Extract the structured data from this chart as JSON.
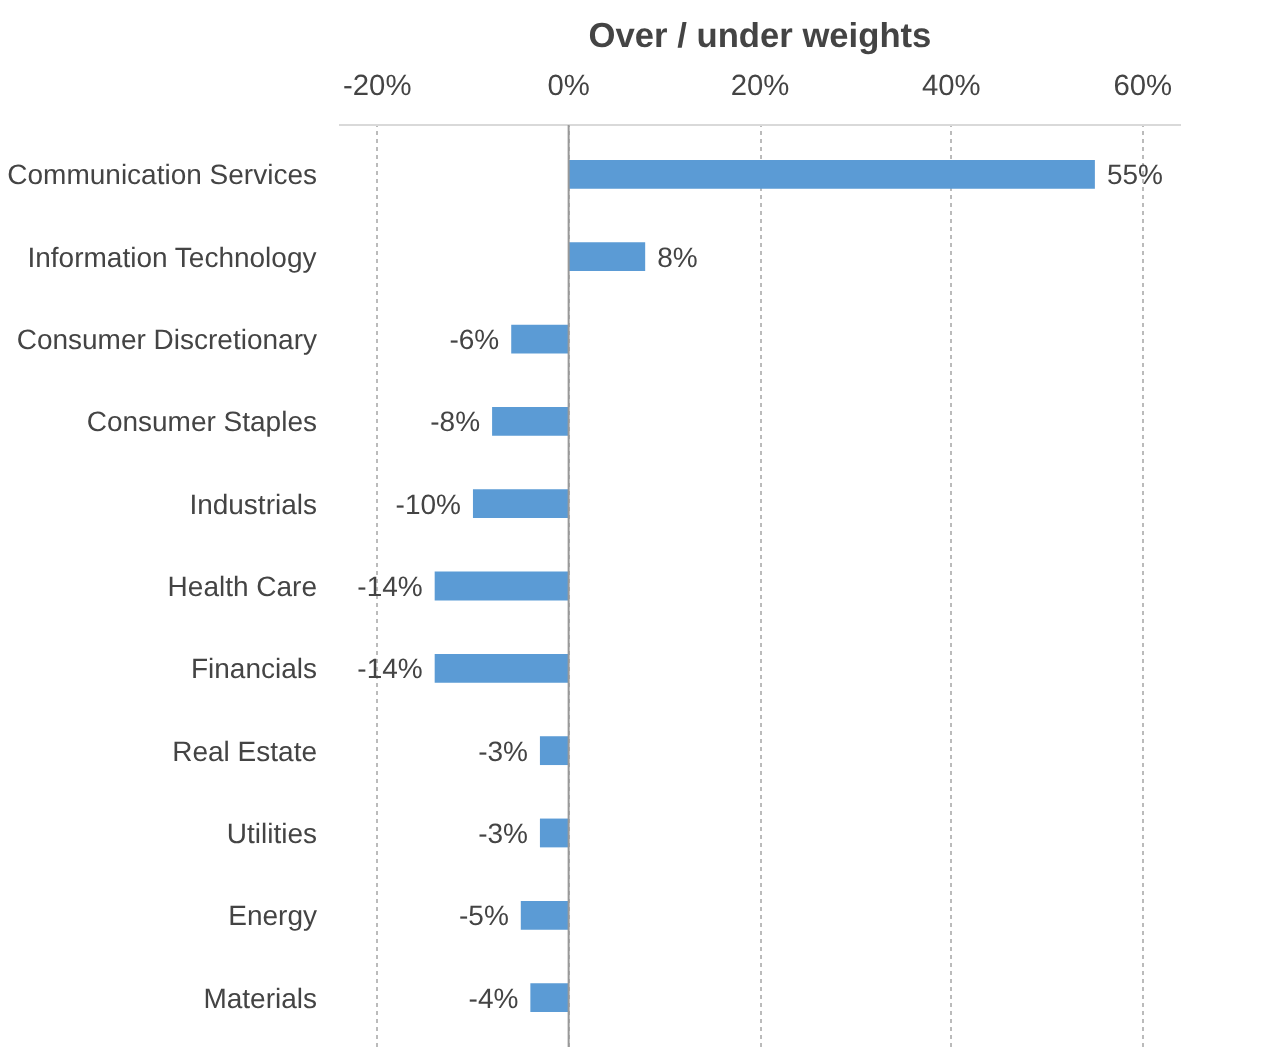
{
  "chart_data": {
    "type": "bar",
    "orientation": "horizontal",
    "title": "Over / under weights",
    "categories": [
      "Communication Services",
      "Information Technology",
      "Consumer Discretionary",
      "Consumer Staples",
      "Industrials",
      "Health Care",
      "Financials",
      "Real Estate",
      "Utilities",
      "Energy",
      "Materials"
    ],
    "values": [
      55,
      8,
      -6,
      -8,
      -10,
      -14,
      -14,
      -3,
      -3,
      -5,
      -4
    ],
    "value_labels": [
      "55%",
      "8%",
      "-6%",
      "-8%",
      "-10%",
      "-14%",
      "-14%",
      "-3%",
      "-3%",
      "-5%",
      "-4%"
    ],
    "color": "#5b9bd5",
    "xlim": [
      -24,
      64
    ],
    "xticks": [
      {
        "value": -20,
        "label": "-20%"
      },
      {
        "value": 0,
        "label": "0%"
      },
      {
        "value": 20,
        "label": "20%"
      },
      {
        "value": 40,
        "label": "40%"
      },
      {
        "value": 60,
        "label": "60%"
      }
    ],
    "grid": "x"
  }
}
